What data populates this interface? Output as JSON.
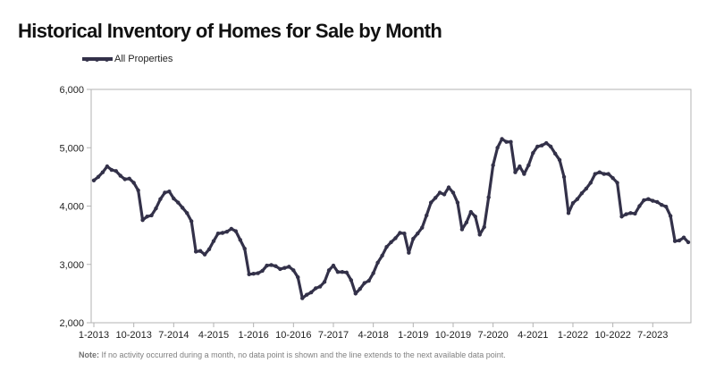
{
  "chart_data": {
    "type": "line",
    "title": "Historical Inventory of Homes for Sale by Month",
    "xlabel": "",
    "ylabel": "",
    "ylim": [
      2000,
      6000
    ],
    "yticks": [
      "2,000",
      "3,000",
      "4,000",
      "5,000",
      "6,000"
    ],
    "ytick_values": [
      2000,
      3000,
      4000,
      5000,
      6000
    ],
    "xticks": [
      "1-2013",
      "10-2013",
      "7-2014",
      "4-2015",
      "1-2016",
      "10-2016",
      "7-2017",
      "4-2018",
      "1-2019",
      "10-2019",
      "7-2020",
      "4-2021",
      "1-2022",
      "10-2022",
      "7-2023"
    ],
    "xtick_index": [
      0,
      9,
      18,
      27,
      36,
      45,
      54,
      63,
      72,
      81,
      90,
      99,
      108,
      117,
      126
    ],
    "legend_position": "top-left",
    "grid": false,
    "series": [
      {
        "name": "All Properties",
        "color": "#333149",
        "values": [
          4440,
          4500,
          4580,
          4680,
          4620,
          4600,
          4520,
          4460,
          4470,
          4400,
          4270,
          3760,
          3820,
          3840,
          3960,
          4120,
          4230,
          4250,
          4130,
          4060,
          3970,
          3880,
          3740,
          3220,
          3230,
          3170,
          3260,
          3400,
          3530,
          3540,
          3560,
          3610,
          3570,
          3420,
          3270,
          2830,
          2840,
          2850,
          2890,
          2980,
          2990,
          2970,
          2920,
          2940,
          2960,
          2900,
          2780,
          2420,
          2480,
          2520,
          2590,
          2620,
          2700,
          2900,
          2980,
          2870,
          2870,
          2860,
          2730,
          2500,
          2580,
          2680,
          2720,
          2850,
          3030,
          3150,
          3300,
          3380,
          3450,
          3540,
          3530,
          3200,
          3440,
          3530,
          3630,
          3840,
          4060,
          4140,
          4230,
          4200,
          4320,
          4230,
          4060,
          3600,
          3720,
          3900,
          3820,
          3510,
          3640,
          4150,
          4700,
          5000,
          5150,
          5100,
          5100,
          4580,
          4680,
          4550,
          4700,
          4910,
          5020,
          5040,
          5080,
          5020,
          4900,
          4790,
          4500,
          3880,
          4050,
          4120,
          4220,
          4300,
          4400,
          4550,
          4580,
          4550,
          4550,
          4480,
          4400,
          3820,
          3860,
          3880,
          3870,
          4000,
          4100,
          4120,
          4090,
          4070,
          4020,
          3990,
          3830,
          3400,
          3410,
          3460,
          3380
        ]
      }
    ]
  },
  "legend": {
    "label": "All Properties"
  },
  "note": {
    "bold": "Note:",
    "text": "If no activity occurred during a month, no data point is shown and the line extends to the next available data point."
  }
}
